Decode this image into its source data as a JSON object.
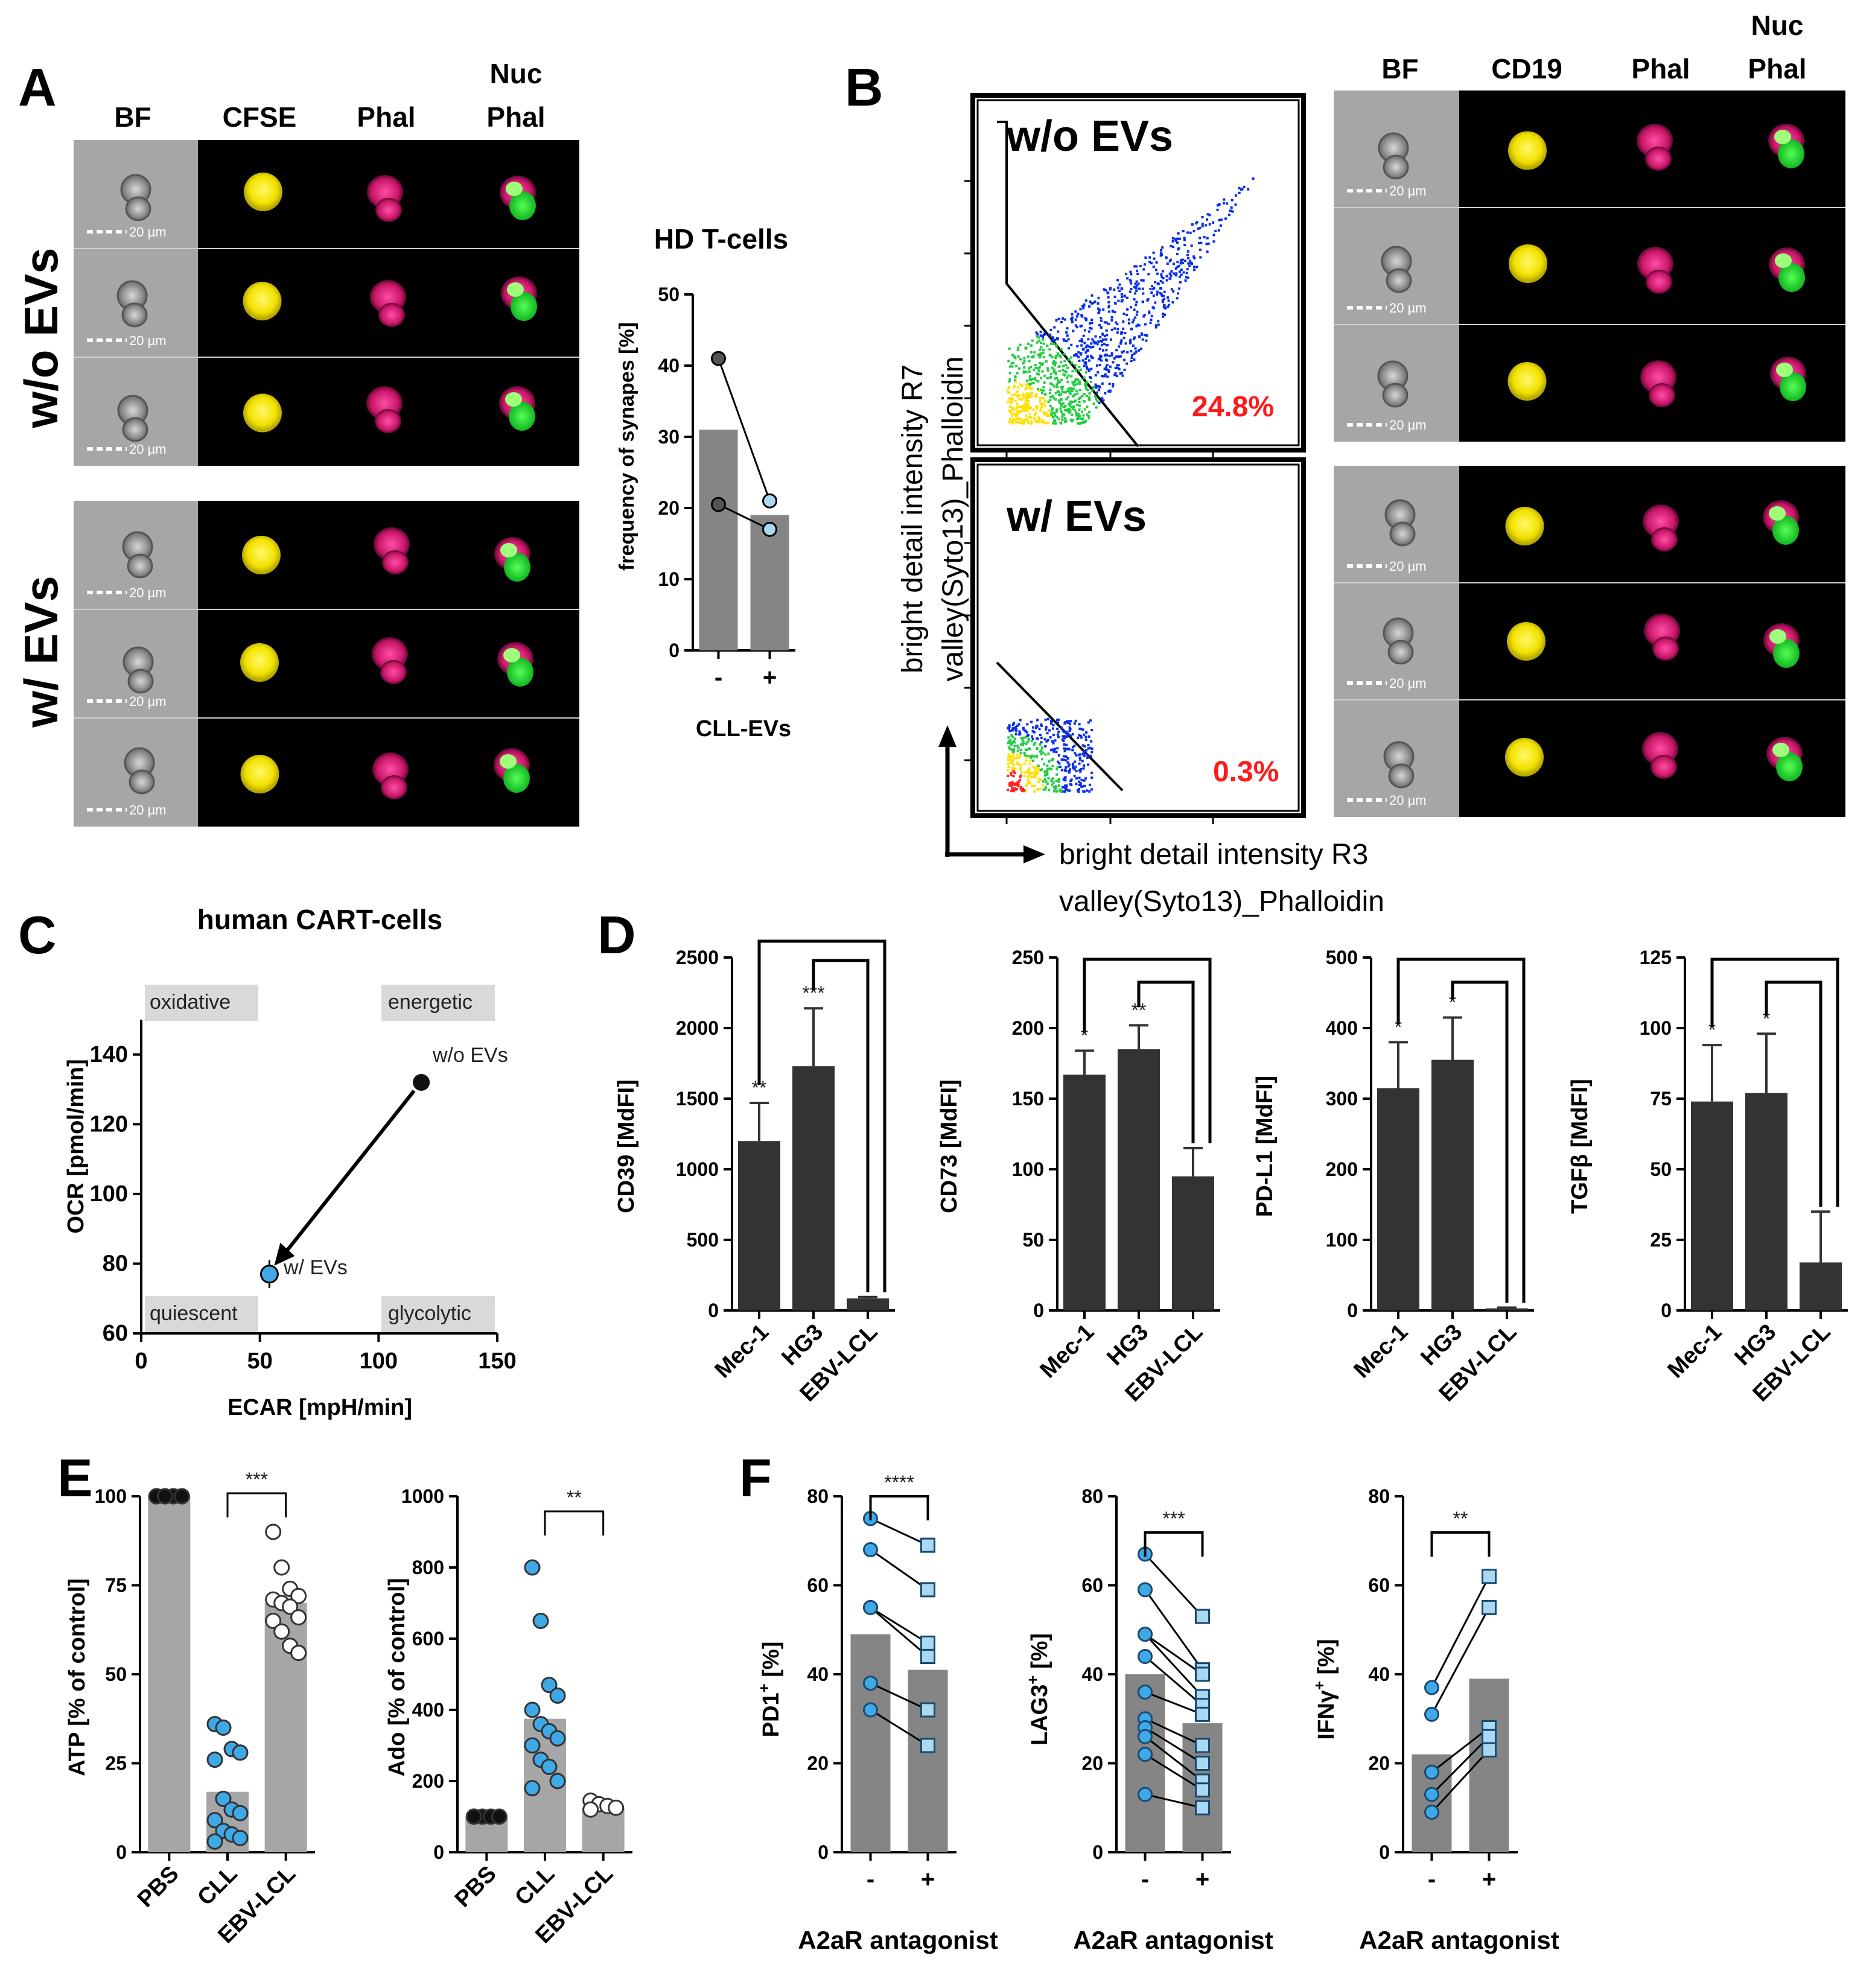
{
  "panel_labels": [
    "A",
    "B",
    "C",
    "D",
    "E",
    "F"
  ],
  "colors": {
    "bar_gray": "#858585",
    "bar_dark": "#333333",
    "point_blue": "#3fa9e8",
    "point_light": "#a9d8f2",
    "point_white": "#ffffff",
    "pct_red": "#ff1a1a",
    "cell_yellow": "#ffee00",
    "cell_magenta": "#e0207a",
    "cell_green": "#22dd33"
  },
  "panel_a": {
    "columns": [
      "BF",
      "CFSE",
      "Phal",
      "Nuc\nPhal"
    ],
    "col_nuc_1": "Nuc",
    "col_nuc_2": "Phal",
    "row_without": "w/o EVs",
    "row_with": "w/ EVs",
    "scale_label": "20 µm"
  },
  "panel_b": {
    "columns_bf": "BF",
    "columns_cd19": "CD19",
    "columns_phal": "Phal",
    "col_nuc_1": "Nuc",
    "col_nuc_2": "Phal",
    "plot_top_label": "w/o EVs",
    "plot_bottom_label": "w/ EVs",
    "pct_top": "24.8%",
    "pct_bottom": "0.3%",
    "ylabel_1": "bright detail intensity R7",
    "ylabel_2": "valley(Syto13)_Phalloidin",
    "xlabel_1": "bright detail intensity R3",
    "xlabel_2": "valley(Syto13)_Phalloidin",
    "scale_label": "20 µm"
  },
  "chart_data": [
    {
      "id": "hd_tcells",
      "type": "bar",
      "title": "HD T-cells",
      "ylabel": "frequency of synapes [%]",
      "xlabel": "CLL-EVs",
      "categories": [
        "-",
        "+"
      ],
      "values": [
        31,
        19
      ],
      "ylim": [
        0,
        50
      ],
      "yticks": [
        "0",
        "10",
        "20",
        "30",
        "40",
        "50"
      ],
      "pairs": [
        [
          41,
          21
        ],
        [
          20.5,
          17
        ]
      ]
    },
    {
      "id": "cart_metabolism",
      "type": "scatter",
      "title": "human CART-cells",
      "xlabel": "ECAR [mpH/min]",
      "ylabel": "OCR [pmol/min]",
      "xlim": [
        0,
        150
      ],
      "ylim": [
        60,
        150
      ],
      "xticks": [
        "0",
        "50",
        "100",
        "150"
      ],
      "yticks": [
        "60",
        "80",
        "100",
        "120",
        "140"
      ],
      "quadrants": [
        "oxidative",
        "energetic",
        "quiescent",
        "glycolytic"
      ],
      "points": [
        {
          "name": "w/o EVs",
          "x": 118,
          "y": 132
        },
        {
          "name": "w/ EVs",
          "x": 54,
          "y": 77
        }
      ]
    },
    {
      "id": "cd39",
      "type": "bar",
      "ylabel": "CD39 [MdFI]",
      "categories": [
        "Mec-1",
        "HG3",
        "EBV-LCL"
      ],
      "values": [
        1200,
        1730,
        85
      ],
      "errors": [
        270,
        410,
        10
      ],
      "ylim": [
        0,
        2500
      ],
      "yticks": [
        "0",
        "500",
        "1000",
        "1500",
        "2000",
        "2500"
      ],
      "stars": [
        "**",
        "***",
        ""
      ]
    },
    {
      "id": "cd73",
      "type": "bar",
      "ylabel": "CD73 [MdFI]",
      "categories": [
        "Mec-1",
        "HG3",
        "EBV-LCL"
      ],
      "values": [
        167,
        185,
        95
      ],
      "errors": [
        17,
        17,
        20
      ],
      "ylim": [
        0,
        250
      ],
      "yticks": [
        "0",
        "50",
        "100",
        "150",
        "200",
        "250"
      ],
      "stars": [
        "*",
        "**",
        ""
      ]
    },
    {
      "id": "pdl1",
      "type": "bar",
      "ylabel": "PD-L1 [MdFI]",
      "categories": [
        "Mec-1",
        "HG3",
        "EBV-LCL"
      ],
      "values": [
        315,
        355,
        3
      ],
      "errors": [
        65,
        60,
        1
      ],
      "ylim": [
        0,
        500
      ],
      "yticks": [
        "0",
        "100",
        "200",
        "300",
        "400",
        "500"
      ],
      "stars": [
        "*",
        "*",
        ""
      ]
    },
    {
      "id": "tgfb",
      "type": "bar",
      "ylabel": "TGFβ [MdFI]",
      "categories": [
        "Mec-1",
        "HG3",
        "EBV-LCL"
      ],
      "values": [
        74,
        77,
        17
      ],
      "errors": [
        20,
        21,
        18
      ],
      "ylim": [
        0,
        125
      ],
      "yticks": [
        "0",
        "25",
        "50",
        "75",
        "100",
        "125"
      ],
      "stars": [
        "*",
        "*",
        ""
      ]
    },
    {
      "id": "atp",
      "type": "bar",
      "ylabel": "ATP [% of control]",
      "categories": [
        "PBS",
        "CLL",
        "EBV-LCL"
      ],
      "values": [
        100,
        17,
        70
      ],
      "ylim": [
        0,
        100
      ],
      "yticks": [
        "0",
        "25",
        "50",
        "75",
        "100"
      ],
      "sig": "***",
      "points": [
        [
          100,
          100,
          100,
          100,
          100,
          100,
          100,
          100,
          100,
          100
        ],
        [
          36,
          35,
          29,
          28,
          26,
          15,
          12,
          11,
          9,
          6,
          5,
          4,
          3
        ],
        [
          90,
          80,
          74,
          72,
          71,
          70,
          69,
          66,
          65,
          62,
          58,
          56
        ]
      ]
    },
    {
      "id": "ado",
      "type": "bar",
      "ylabel": "Ado [% of control]",
      "categories": [
        "PBS",
        "CLL",
        "EBV-LCL"
      ],
      "values": [
        100,
        375,
        125
      ],
      "ylim": [
        0,
        1000
      ],
      "yticks": [
        "0",
        "200",
        "400",
        "600",
        "800",
        "1000"
      ],
      "sig": "**",
      "points": [
        [
          100,
          100,
          100,
          100,
          100
        ],
        [
          800,
          650,
          470,
          440,
          400,
          360,
          340,
          320,
          300,
          260,
          240,
          200,
          180
        ],
        [
          145,
          135,
          130,
          125,
          120
        ]
      ]
    },
    {
      "id": "pd1",
      "type": "bar",
      "ylabel": "PD1+ [%]",
      "ylabel_main": "PD1",
      "xlabel": "A2aR antagonist",
      "categories": [
        "-",
        "+"
      ],
      "values": [
        49,
        41
      ],
      "ylim": [
        0,
        80
      ],
      "yticks": [
        "0",
        "20",
        "40",
        "60",
        "80"
      ],
      "sig": "****",
      "pairs": [
        [
          75,
          69
        ],
        [
          68,
          59
        ],
        [
          55,
          47
        ],
        [
          55,
          44
        ],
        [
          38,
          32
        ],
        [
          32,
          24
        ]
      ]
    },
    {
      "id": "lag3",
      "type": "bar",
      "ylabel": "LAG3+ [%]",
      "ylabel_main": "LAG3",
      "xlabel": "A2aR antagonist",
      "categories": [
        "-",
        "+"
      ],
      "values": [
        40,
        29
      ],
      "ylim": [
        0,
        80
      ],
      "yticks": [
        "0",
        "20",
        "40",
        "60",
        "80"
      ],
      "sig": "***",
      "pairs": [
        [
          67,
          53
        ],
        [
          59,
          41
        ],
        [
          49,
          40
        ],
        [
          49,
          35
        ],
        [
          44,
          33
        ],
        [
          36,
          31
        ],
        [
          30,
          24
        ],
        [
          28,
          20
        ],
        [
          26,
          16
        ],
        [
          22,
          14
        ],
        [
          13,
          10
        ]
      ]
    },
    {
      "id": "ifng",
      "type": "bar",
      "ylabel": "IFNγ+ [%]",
      "ylabel_main": "IFNγ",
      "xlabel": "A2aR antagonist",
      "categories": [
        "-",
        "+"
      ],
      "values": [
        22,
        39
      ],
      "ylim": [
        0,
        80
      ],
      "yticks": [
        "0",
        "20",
        "40",
        "60",
        "80"
      ],
      "sig": "**",
      "pairs": [
        [
          37,
          62
        ],
        [
          31,
          55
        ],
        [
          18,
          28
        ],
        [
          13,
          26
        ],
        [
          9,
          23
        ]
      ]
    }
  ]
}
